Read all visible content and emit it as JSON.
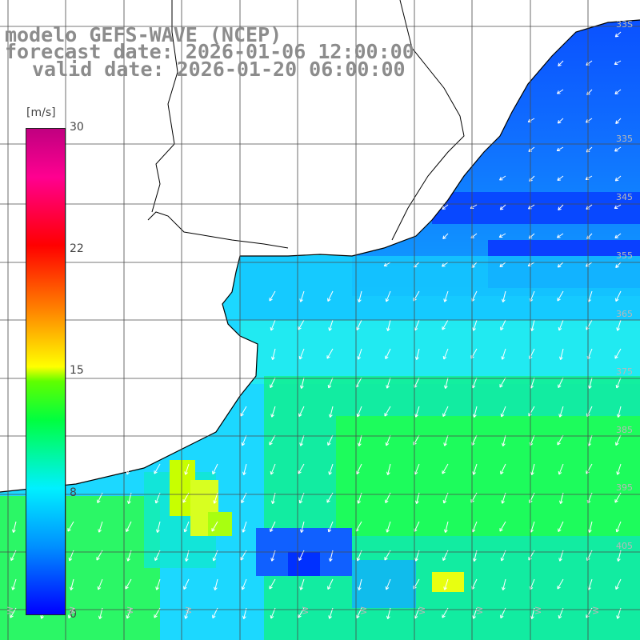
{
  "header": {
    "line1": "modelo GEFS-WAVE (NCEP)",
    "line2": "forecast date: 2026-01-06 12:00:00",
    "line3": "valid date: 2026-01-20 06:00:00"
  },
  "colorbar": {
    "unit": "[m/s]",
    "ticks": [
      "30",
      "22",
      "15",
      "8",
      "0"
    ],
    "range": [
      0,
      30
    ]
  },
  "map": {
    "lat_labels": [
      "33S",
      "335",
      "345",
      "355",
      "365",
      "375",
      "385",
      "395",
      "405"
    ],
    "lon_labels": [
      "W",
      "W",
      "W",
      "W",
      "W",
      "W",
      "W",
      "W",
      "W",
      "W"
    ],
    "colors": {
      "ocean_low": "#0000ff",
      "ocean_mid": "#00f0ff",
      "ocean_high": "#00ff40",
      "land": "#ffffff",
      "grid": "#555555",
      "coast": "#000000",
      "arrows": "#ffffff"
    }
  }
}
